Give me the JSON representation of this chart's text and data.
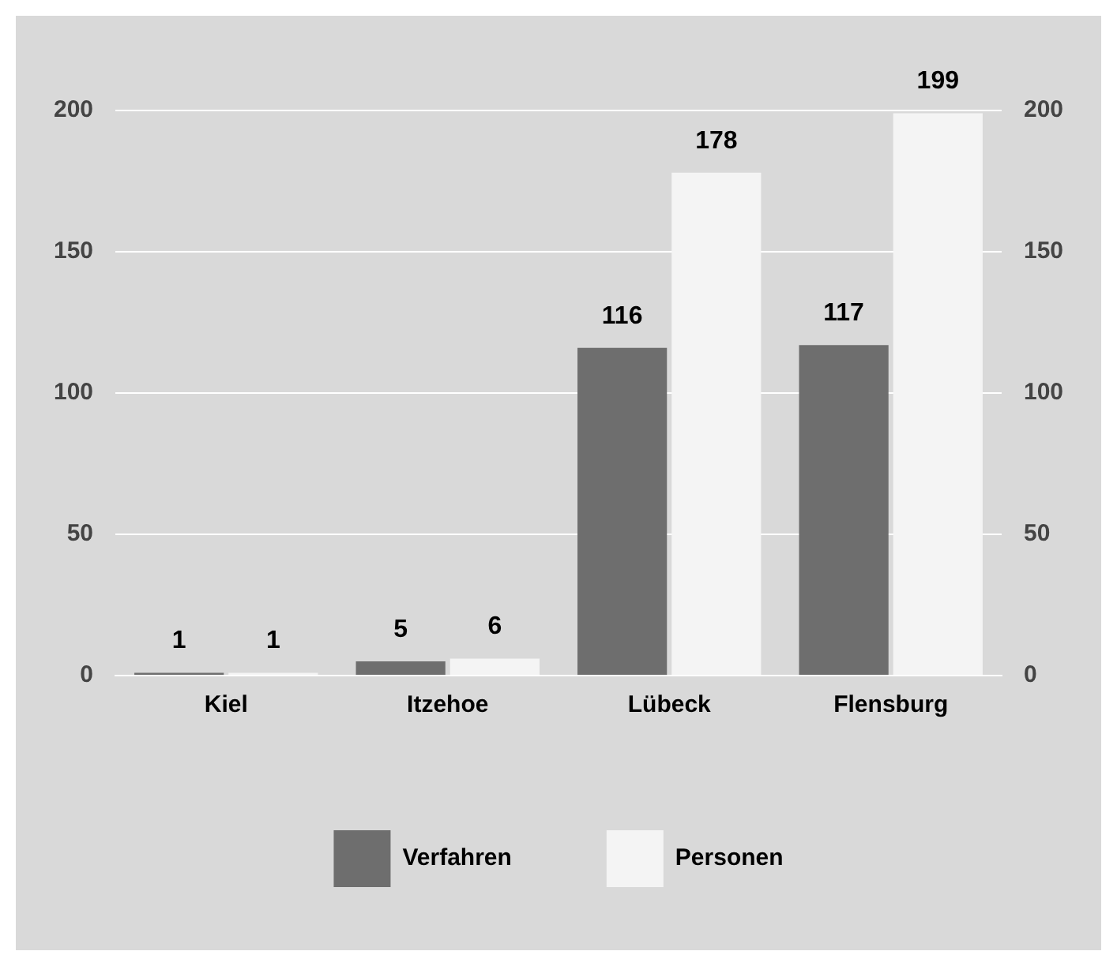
{
  "chart_data": {
    "type": "bar",
    "categories": [
      "Kiel",
      "Itzehoe",
      "Lübeck",
      "Flensburg"
    ],
    "series": [
      {
        "name": "Verfahren",
        "color": "#6e6e6e",
        "values": [
          1,
          5,
          116,
          117
        ]
      },
      {
        "name": "Personen",
        "color": "#f4f4f4",
        "values": [
          1,
          6,
          178,
          199
        ]
      }
    ],
    "ylim": [
      0,
      200
    ],
    "yticks": [
      0,
      50,
      100,
      150,
      200
    ],
    "y2lim": [
      0,
      200
    ],
    "y2ticks": [
      0,
      50,
      100,
      150,
      200
    ],
    "grid": "y",
    "legend": "bottom",
    "data_labels": true
  }
}
